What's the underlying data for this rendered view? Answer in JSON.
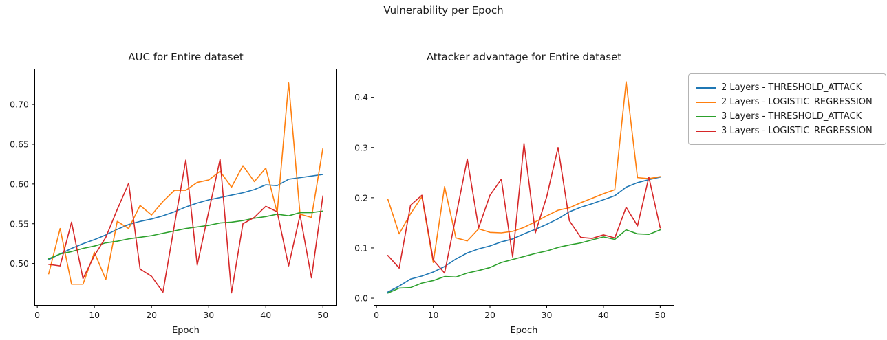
{
  "figure": {
    "suptitle": "Vulnerability per Epoch"
  },
  "legend": {
    "position": "outside-right-top"
  },
  "chart_data": [
    {
      "type": "line",
      "title": "AUC for Entire dataset",
      "xlabel": "Epoch",
      "ylabel": "",
      "grid": false,
      "xlim": [
        -0.5,
        52.5
      ],
      "ylim": [
        0.447,
        0.745
      ],
      "xticks": [
        0,
        10,
        20,
        30,
        40,
        50
      ],
      "xtick_labels": [
        "0",
        "10",
        "20",
        "30",
        "40",
        "50"
      ],
      "yticks": [
        0.5,
        0.55,
        0.6,
        0.65,
        0.7
      ],
      "ytick_labels": [
        "0.50",
        "0.55",
        "0.60",
        "0.65",
        "0.70"
      ],
      "x": [
        2,
        4,
        6,
        8,
        10,
        12,
        14,
        16,
        18,
        20,
        22,
        24,
        26,
        28,
        30,
        32,
        34,
        36,
        38,
        40,
        42,
        44,
        46,
        48,
        50
      ],
      "series": [
        {
          "name": "2 Layers - THRESHOLD_ATTACK",
          "color": "#1f77b4",
          "values": [
            0.505,
            0.512,
            0.519,
            0.525,
            0.53,
            0.536,
            0.543,
            0.549,
            0.553,
            0.556,
            0.56,
            0.565,
            0.571,
            0.576,
            0.58,
            0.583,
            0.586,
            0.589,
            0.593,
            0.599,
            0.598,
            0.606,
            0.608,
            0.61,
            0.612
          ]
        },
        {
          "name": "2 Layers - LOGISTIC_REGRESSION",
          "color": "#ff7f0e",
          "values": [
            0.487,
            0.544,
            0.474,
            0.474,
            0.514,
            0.48,
            0.553,
            0.544,
            0.573,
            0.561,
            0.578,
            0.592,
            0.592,
            0.602,
            0.605,
            0.616,
            0.596,
            0.623,
            0.603,
            0.62,
            0.564,
            0.727,
            0.562,
            0.558,
            0.645
          ]
        },
        {
          "name": "3 Layers - THRESHOLD_ATTACK",
          "color": "#2ca02c",
          "values": [
            0.506,
            0.512,
            0.515,
            0.519,
            0.522,
            0.526,
            0.528,
            0.531,
            0.533,
            0.535,
            0.538,
            0.541,
            0.544,
            0.546,
            0.548,
            0.551,
            0.552,
            0.554,
            0.557,
            0.559,
            0.562,
            0.56,
            0.564,
            0.564,
            0.566
          ]
        },
        {
          "name": "3 Layers - LOGISTIC_REGRESSION",
          "color": "#d62728",
          "values": [
            0.499,
            0.497,
            0.552,
            0.481,
            0.51,
            0.533,
            0.568,
            0.601,
            0.493,
            0.484,
            0.464,
            0.548,
            0.63,
            0.498,
            0.565,
            0.631,
            0.463,
            0.55,
            0.558,
            0.572,
            0.565,
            0.497,
            0.561,
            0.482,
            0.585
          ]
        }
      ]
    },
    {
      "type": "line",
      "title": "Attacker advantage for Entire dataset",
      "xlabel": "Epoch",
      "ylabel": "",
      "grid": false,
      "xlim": [
        -0.5,
        52.5
      ],
      "ylim": [
        -0.015,
        0.457
      ],
      "xticks": [
        0,
        10,
        20,
        30,
        40,
        50
      ],
      "xtick_labels": [
        "0",
        "10",
        "20",
        "30",
        "40",
        "50"
      ],
      "yticks": [
        0.0,
        0.1,
        0.2,
        0.3,
        0.4
      ],
      "ytick_labels": [
        "0.0",
        "0.1",
        "0.2",
        "0.3",
        "0.4"
      ],
      "x": [
        2,
        4,
        6,
        8,
        10,
        12,
        14,
        16,
        18,
        20,
        22,
        24,
        26,
        28,
        30,
        32,
        34,
        36,
        38,
        40,
        42,
        44,
        46,
        48,
        50
      ],
      "series": [
        {
          "name": "2 Layers - THRESHOLD_ATTACK",
          "color": "#1f77b4",
          "values": [
            0.012,
            0.024,
            0.038,
            0.044,
            0.052,
            0.063,
            0.078,
            0.09,
            0.098,
            0.104,
            0.112,
            0.118,
            0.128,
            0.137,
            0.147,
            0.158,
            0.172,
            0.181,
            0.188,
            0.196,
            0.204,
            0.221,
            0.23,
            0.236,
            0.241
          ]
        },
        {
          "name": "2 Layers - LOGISTIC_REGRESSION",
          "color": "#ff7f0e",
          "values": [
            0.197,
            0.128,
            0.168,
            0.202,
            0.071,
            0.222,
            0.12,
            0.114,
            0.138,
            0.131,
            0.13,
            0.133,
            0.141,
            0.152,
            0.164,
            0.175,
            0.18,
            0.19,
            0.199,
            0.208,
            0.216,
            0.431,
            0.24,
            0.238,
            0.242
          ]
        },
        {
          "name": "3 Layers - THRESHOLD_ATTACK",
          "color": "#2ca02c",
          "values": [
            0.01,
            0.02,
            0.021,
            0.03,
            0.035,
            0.043,
            0.042,
            0.05,
            0.055,
            0.061,
            0.071,
            0.077,
            0.083,
            0.089,
            0.094,
            0.101,
            0.106,
            0.11,
            0.116,
            0.122,
            0.117,
            0.136,
            0.128,
            0.127,
            0.136
          ]
        },
        {
          "name": "3 Layers - LOGISTIC_REGRESSION",
          "color": "#d62728",
          "values": [
            0.085,
            0.06,
            0.185,
            0.205,
            0.076,
            0.05,
            0.163,
            0.277,
            0.14,
            0.205,
            0.237,
            0.082,
            0.308,
            0.13,
            0.202,
            0.3,
            0.154,
            0.121,
            0.119,
            0.126,
            0.12,
            0.181,
            0.144,
            0.241,
            0.14
          ]
        }
      ]
    }
  ]
}
